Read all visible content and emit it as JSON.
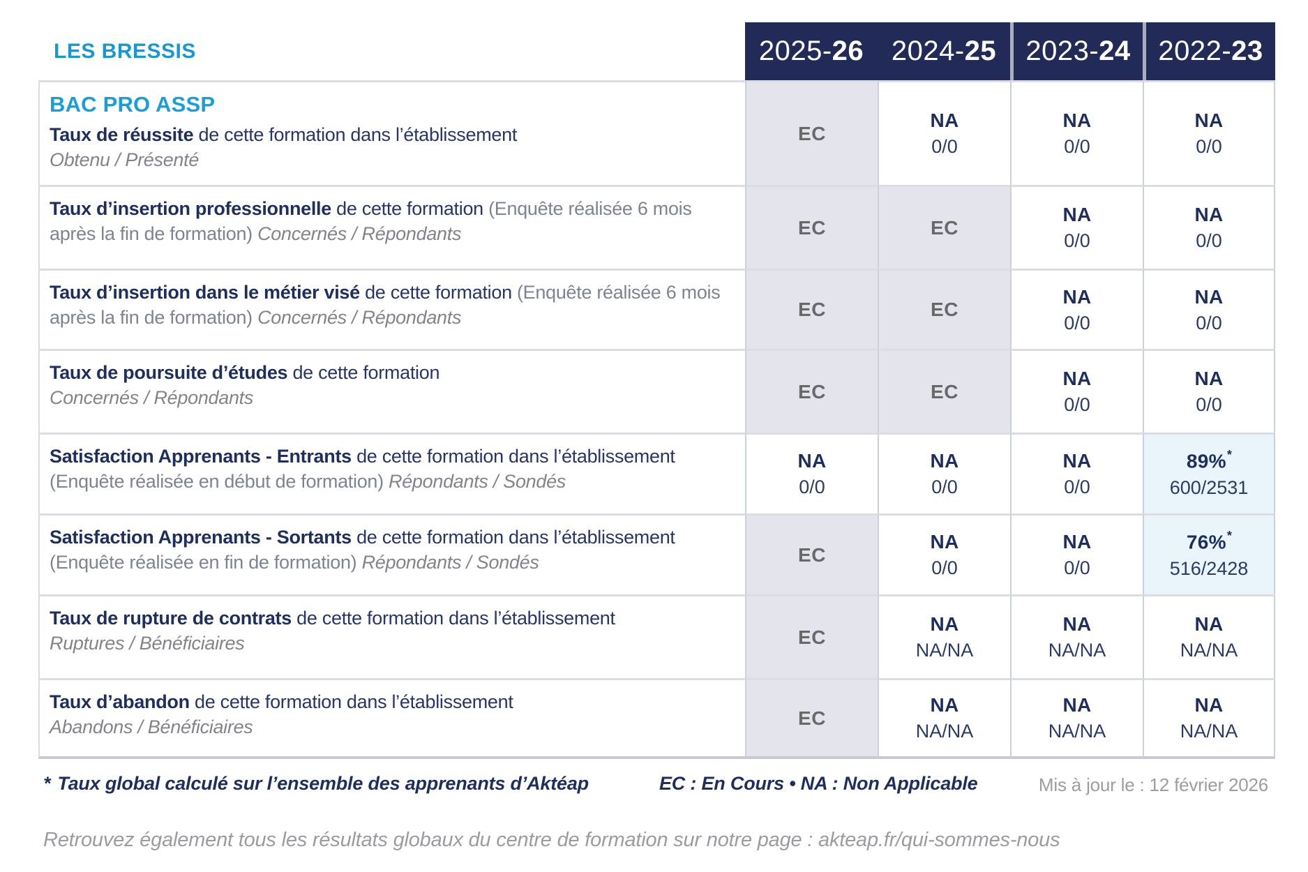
{
  "brand": "LES BRESSIS",
  "program": "BAC PRO ASSP",
  "columns": [
    {
      "prefix": "2025-",
      "suffix": "26"
    },
    {
      "prefix": "2024-",
      "suffix": "25"
    },
    {
      "prefix": "2023-",
      "suffix": "24"
    },
    {
      "prefix": "2022-",
      "suffix": "23"
    }
  ],
  "rows": [
    {
      "title": "Taux de réussite",
      "text": "de cette formation dans l’établissement",
      "paren": "",
      "sub": "Obtenu / Présenté",
      "sub_newline": true,
      "cells": [
        {
          "type": "ec",
          "label": "EC"
        },
        {
          "type": "na",
          "main": "NA",
          "detail": "0/0"
        },
        {
          "type": "na",
          "main": "NA",
          "detail": "0/0"
        },
        {
          "type": "na",
          "main": "NA",
          "detail": "0/0"
        }
      ]
    },
    {
      "title": "Taux d’insertion professionnelle",
      "text": "de cette formation",
      "paren": "(Enquête réalisée 6 mois après la fin de formation)",
      "sub": "Concernés / Répondants",
      "sub_newline": false,
      "cells": [
        {
          "type": "ec",
          "label": "EC"
        },
        {
          "type": "ec",
          "label": "EC"
        },
        {
          "type": "na",
          "main": "NA",
          "detail": "0/0"
        },
        {
          "type": "na",
          "main": "NA",
          "detail": "0/0"
        }
      ]
    },
    {
      "title": "Taux d’insertion dans le métier visé",
      "text": "de cette formation",
      "paren": "(Enquête réalisée 6 mois après la fin de formation)",
      "sub": "Concernés / Répondants",
      "sub_newline": false,
      "cells": [
        {
          "type": "ec",
          "label": "EC"
        },
        {
          "type": "ec",
          "label": "EC"
        },
        {
          "type": "na",
          "main": "NA",
          "detail": "0/0"
        },
        {
          "type": "na",
          "main": "NA",
          "detail": "0/0"
        }
      ]
    },
    {
      "title": "Taux de poursuite d’études",
      "text": "de cette formation",
      "paren": "",
      "sub": "Concernés / Répondants",
      "sub_newline": true,
      "cells": [
        {
          "type": "ec",
          "label": "EC"
        },
        {
          "type": "ec",
          "label": "EC"
        },
        {
          "type": "na",
          "main": "NA",
          "detail": "0/0"
        },
        {
          "type": "na",
          "main": "NA",
          "detail": "0/0"
        }
      ]
    },
    {
      "title": "Satisfaction Apprenants - Entrants",
      "text": "de cette formation dans l’établissement",
      "paren": "(Enquête réalisée en début de formation)",
      "sub": "Répondants / Sondés",
      "sub_newline": false,
      "cells": [
        {
          "type": "na",
          "main": "NA",
          "detail": "0/0"
        },
        {
          "type": "na",
          "main": "NA",
          "detail": "0/0"
        },
        {
          "type": "na",
          "main": "NA",
          "detail": "0/0"
        },
        {
          "type": "pct",
          "main": "89%",
          "star": "*",
          "detail": "600/2531"
        }
      ]
    },
    {
      "title": "Satisfaction Apprenants - Sortants",
      "text": "de cette formation dans l’établissement",
      "paren": "(Enquête réalisée en fin de formation)",
      "sub": "Répondants / Sondés",
      "sub_newline": false,
      "cells": [
        {
          "type": "ec",
          "label": "EC"
        },
        {
          "type": "na",
          "main": "NA",
          "detail": "0/0"
        },
        {
          "type": "na",
          "main": "NA",
          "detail": "0/0"
        },
        {
          "type": "pct",
          "main": "76%",
          "star": "*",
          "detail": "516/2428"
        }
      ]
    },
    {
      "title": "Taux de rupture de contrats",
      "text": "de cette formation dans l’établissement",
      "paren": "",
      "sub": "Ruptures / Bénéficiaires",
      "sub_newline": true,
      "cells": [
        {
          "type": "ec",
          "label": "EC"
        },
        {
          "type": "na",
          "main": "NA",
          "detail": "NA/NA"
        },
        {
          "type": "na",
          "main": "NA",
          "detail": "NA/NA"
        },
        {
          "type": "na",
          "main": "NA",
          "detail": "NA/NA"
        }
      ]
    },
    {
      "title": "Taux d’abandon",
      "text": "de cette formation dans l’établissement",
      "paren": "",
      "sub": "Abandons / Bénéficiaires",
      "sub_newline": true,
      "cells": [
        {
          "type": "ec",
          "label": "EC"
        },
        {
          "type": "na",
          "main": "NA",
          "detail": "NA/NA"
        },
        {
          "type": "na",
          "main": "NA",
          "detail": "NA/NA"
        },
        {
          "type": "na",
          "main": "NA",
          "detail": "NA/NA"
        }
      ]
    }
  ],
  "footnote": {
    "marker": "*",
    "text": "Taux global calculé sur l’ensemble des apprenants d’Aktéap",
    "legend": "EC : En Cours  •  NA : Non Applicable",
    "updated": "Mis à jour le : 12 février 2026"
  },
  "bottom_note": "Retrouvez également tous les résultats globaux du centre de formation sur notre page : akteap.fr/qui-sommes-nous",
  "colors": {
    "header_bg": "#222b57",
    "navy_text": "#1e2e5e",
    "brand_blue": "#1697d6",
    "program_blue": "#189fdb",
    "gray_italic": "#83838b",
    "paren_gray": "#7e8393",
    "ec_text": "#68696b",
    "ec_cell_bg": "#e4e4ed",
    "pct_cell_bg": "#e9f4fb",
    "footer_gray": "#9b9ba3"
  }
}
